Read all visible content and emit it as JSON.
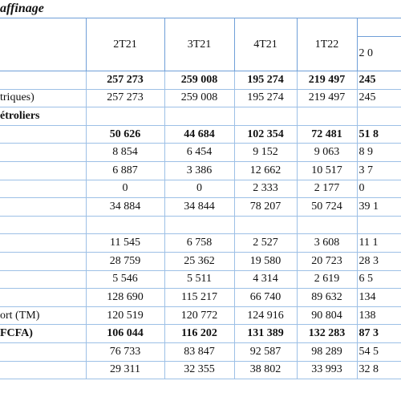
{
  "title": "affinage",
  "header": {
    "columns": [
      "2T21",
      "3T21",
      "4T21",
      "1T22",
      "2 0"
    ]
  },
  "rows": [
    {
      "bold": true,
      "values": [
        "257 273",
        "259 008",
        "195 274",
        "219 497",
        "245"
      ]
    },
    {
      "label": "triques)",
      "values": [
        "257 273",
        "259 008",
        "195 274",
        "219 497",
        "245"
      ]
    },
    {
      "bold": true,
      "label": "étroliers"
    },
    {
      "bold": true,
      "values": [
        "50 626",
        "44 684",
        "102 354",
        "72 481",
        "51 8"
      ]
    },
    {
      "values": [
        "8 854",
        "6 454",
        "9 152",
        "9 063",
        "8 9"
      ]
    },
    {
      "values": [
        "6 887",
        "3 386",
        "12 662",
        "10 517",
        "3 7"
      ]
    },
    {
      "values": [
        "0",
        "0",
        "2 333",
        "2 177",
        "0"
      ]
    },
    {
      "values": [
        "34 884",
        "34 844",
        "78 207",
        "50 724",
        "39 1"
      ]
    },
    {},
    {
      "values": [
        "11 545",
        "6 758",
        "2 527",
        "3 608",
        "11 1"
      ]
    },
    {
      "values": [
        "28 759",
        "25 362",
        "19 580",
        "20 723",
        "28 3"
      ]
    },
    {
      "values": [
        "5 546",
        "5 511",
        "4 314",
        "2 619",
        "6 5"
      ]
    },
    {
      "values": [
        "128 690",
        "115 217",
        "66 740",
        "89 632",
        "134"
      ]
    },
    {
      "label": "ort (TM)",
      "values": [
        "120 519",
        "120 772",
        "124 916",
        "90 804",
        "138"
      ]
    },
    {
      "bold": true,
      "label": "FCFA)",
      "values": [
        "106 044",
        "116 202",
        "131 389",
        "132 283",
        "87 3"
      ]
    },
    {
      "values": [
        "76 733",
        "83 847",
        "92 587",
        "98 289",
        "54 5"
      ]
    },
    {
      "values": [
        "29 311",
        "32 355",
        "38 802",
        "33 993",
        "32 8"
      ]
    }
  ]
}
